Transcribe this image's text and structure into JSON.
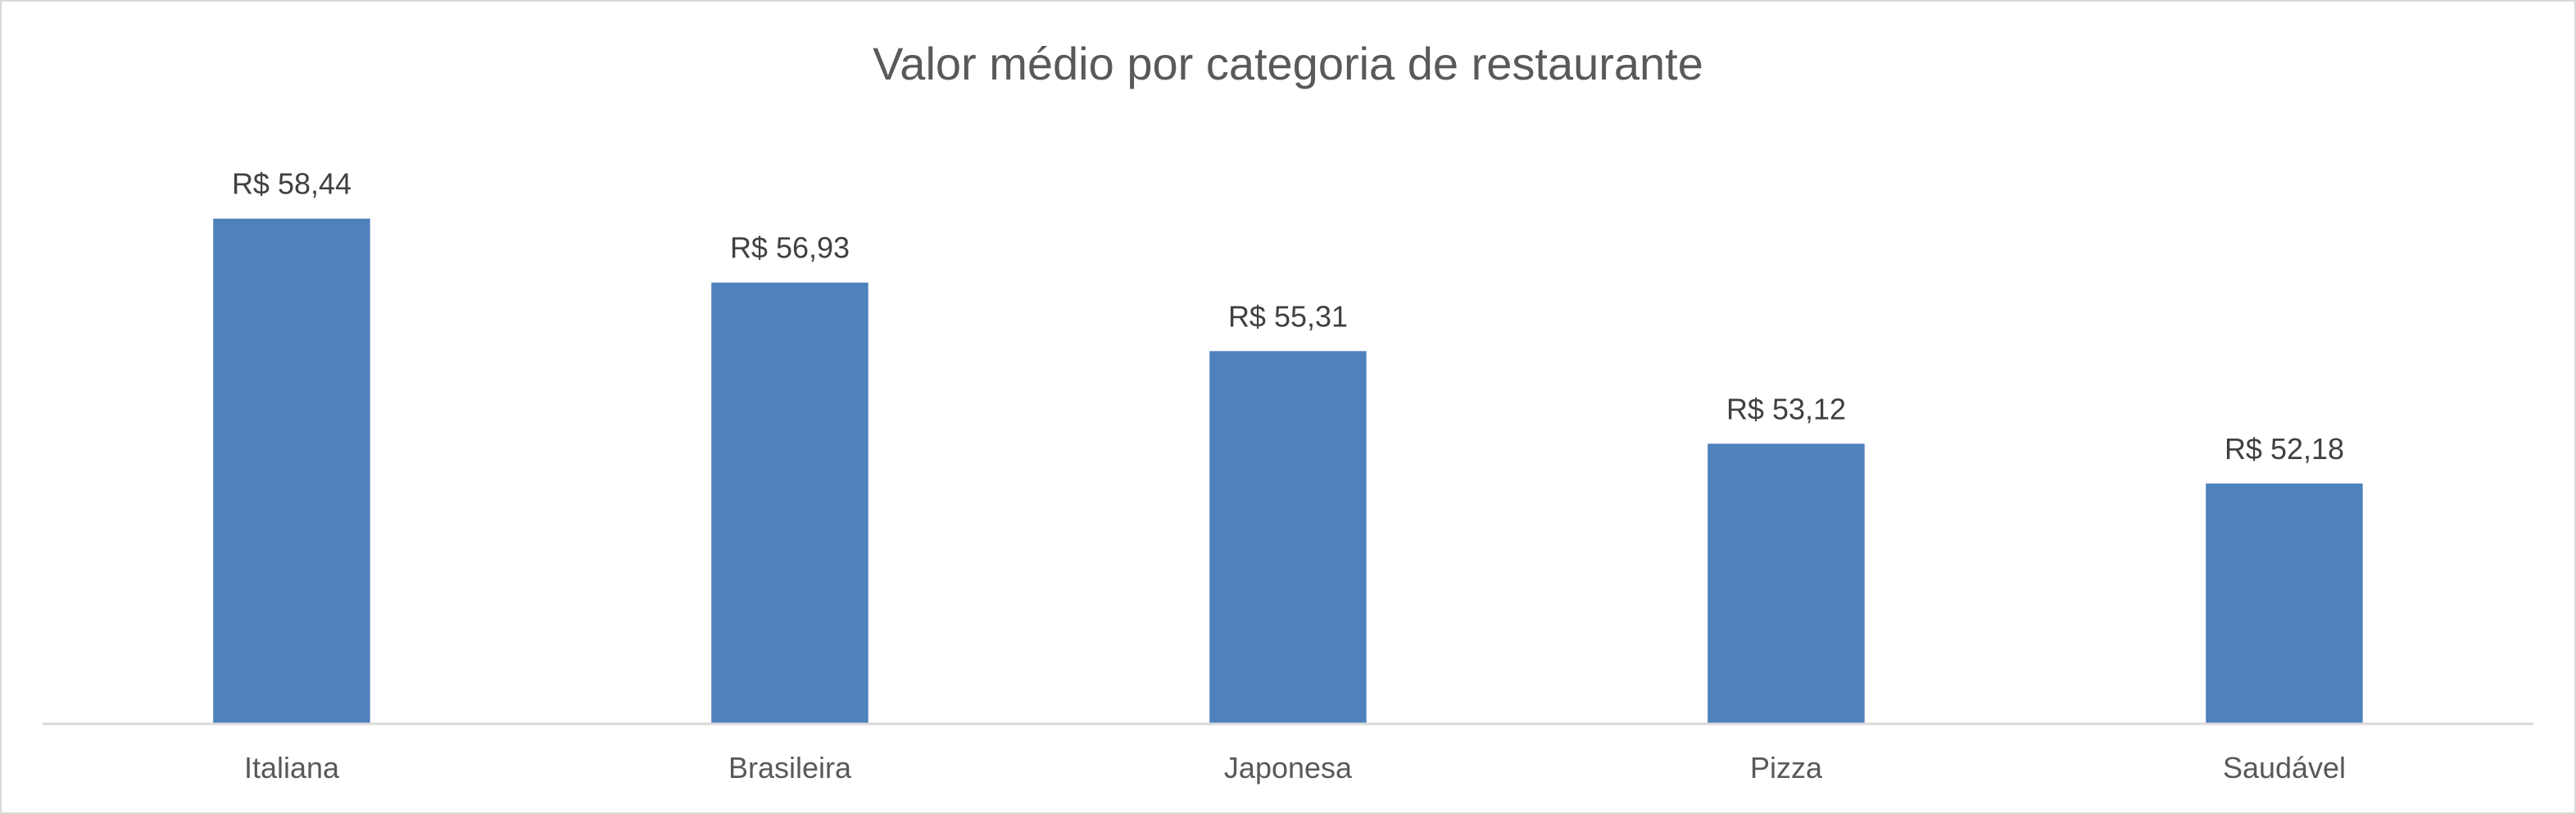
{
  "chart_data": {
    "type": "bar",
    "title": "Valor médio por categoria de restaurante",
    "categories": [
      "Italiana",
      "Brasileira",
      "Japonesa",
      "Pizza",
      "Saudável"
    ],
    "values": [
      58.44,
      56.93,
      55.31,
      53.12,
      52.18
    ],
    "data_labels": [
      "R$ 58,44",
      "R$ 56,93",
      "R$ 55,31",
      "R$ 53,12",
      "R$ 52,18"
    ],
    "xlabel": "",
    "ylabel": "",
    "ylim": [
      46.5,
      59.5
    ],
    "grid": false,
    "legend": "none",
    "colors": {
      "bar": "#4f81bd",
      "axis": "#d9d9d9"
    }
  }
}
